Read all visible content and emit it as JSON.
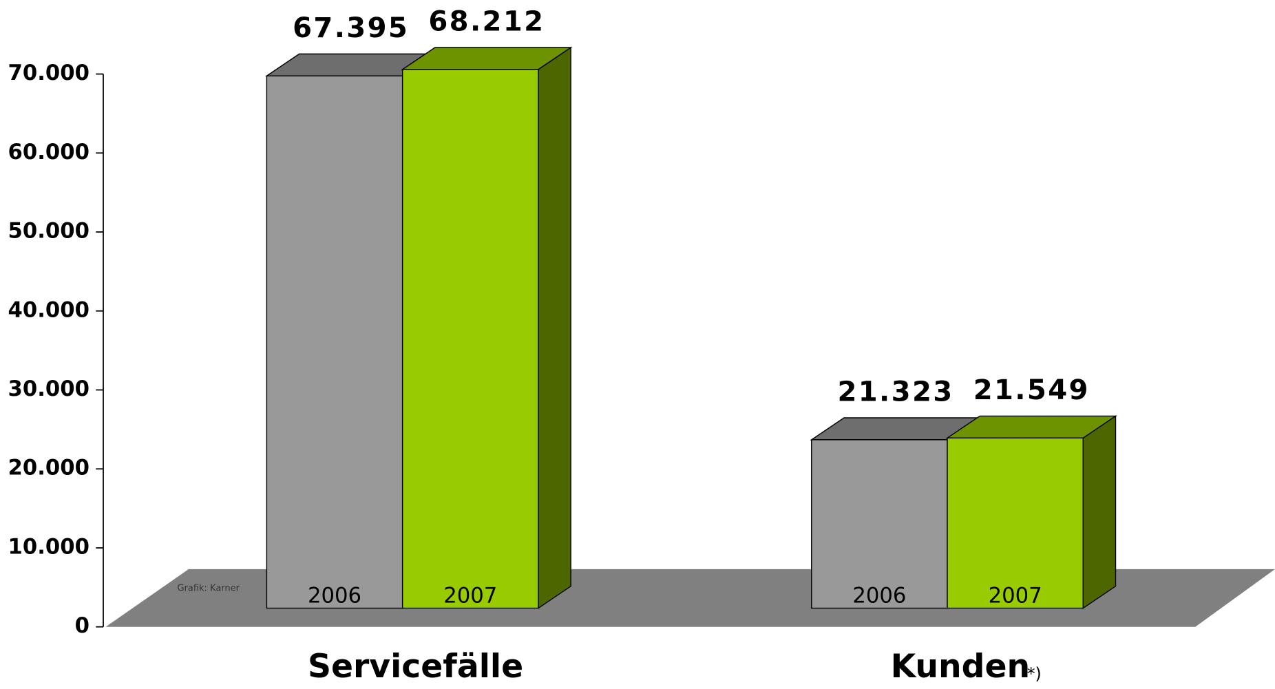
{
  "chart_data": {
    "type": "bar3d",
    "categories": [
      "Servicefälle",
      "Kunden"
    ],
    "annotation": "*)",
    "credit": "Grafik: Karner",
    "series": [
      {
        "name": "2006",
        "color": "#999999",
        "values": [
          67395,
          21323
        ],
        "value_labels": [
          "67.395",
          "21.323"
        ]
      },
      {
        "name": "2007",
        "color": "#99cc00",
        "values": [
          68212,
          21549
        ],
        "value_labels": [
          "68.212",
          "21.549"
        ]
      }
    ],
    "ylim": [
      0,
      70000
    ],
    "yticks": [
      0,
      {
        "value": 10000,
        "label": "10.000"
      },
      {
        "value": 20000,
        "label": "20.000"
      },
      {
        "value": 30000,
        "label": "30.000"
      },
      {
        "value": 40000,
        "label": "40.000"
      },
      {
        "value": 50000,
        "label": "50.000"
      },
      {
        "value": 60000,
        "label": "60.000"
      },
      {
        "value": 70000,
        "label": "70.000"
      }
    ]
  }
}
